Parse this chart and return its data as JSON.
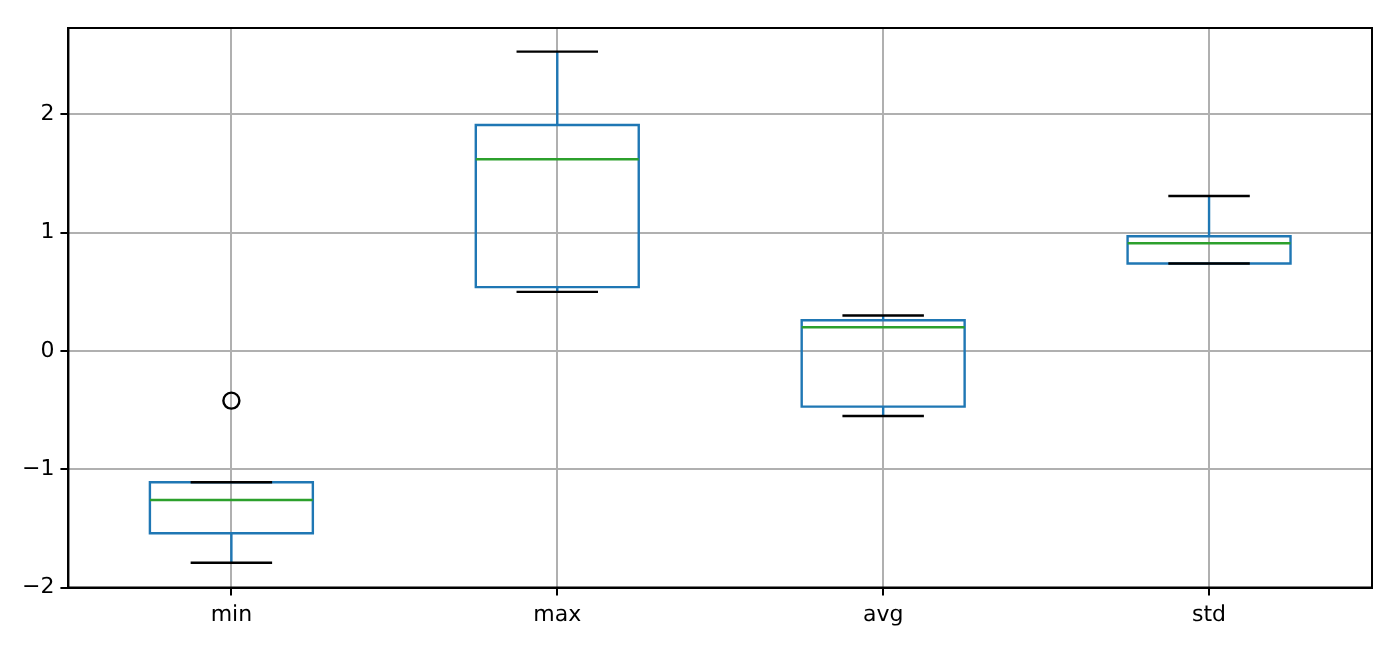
{
  "chart_data": {
    "type": "box",
    "categories": [
      "min",
      "max",
      "avg",
      "std"
    ],
    "color": "#1f77b4",
    "boxes": [
      {
        "low": -1.79,
        "q1": -1.54,
        "median": -1.26,
        "q3": -1.11,
        "high": -1.11,
        "outliers": [
          -0.42
        ]
      },
      {
        "low": 0.5,
        "q1": 0.54,
        "median": 1.62,
        "q3": 1.91,
        "high": 2.53
      },
      {
        "low": -0.55,
        "q1": -0.47,
        "median": 0.2,
        "q3": 0.26,
        "high": 0.3
      },
      {
        "low": 0.74,
        "q1": 0.74,
        "median": 0.91,
        "q3": 0.97,
        "high": 1.31
      }
    ],
    "ylim": [
      -2,
      2.73
    ],
    "yticks": [
      -2,
      -1,
      0,
      1,
      2
    ],
    "grid": true
  }
}
